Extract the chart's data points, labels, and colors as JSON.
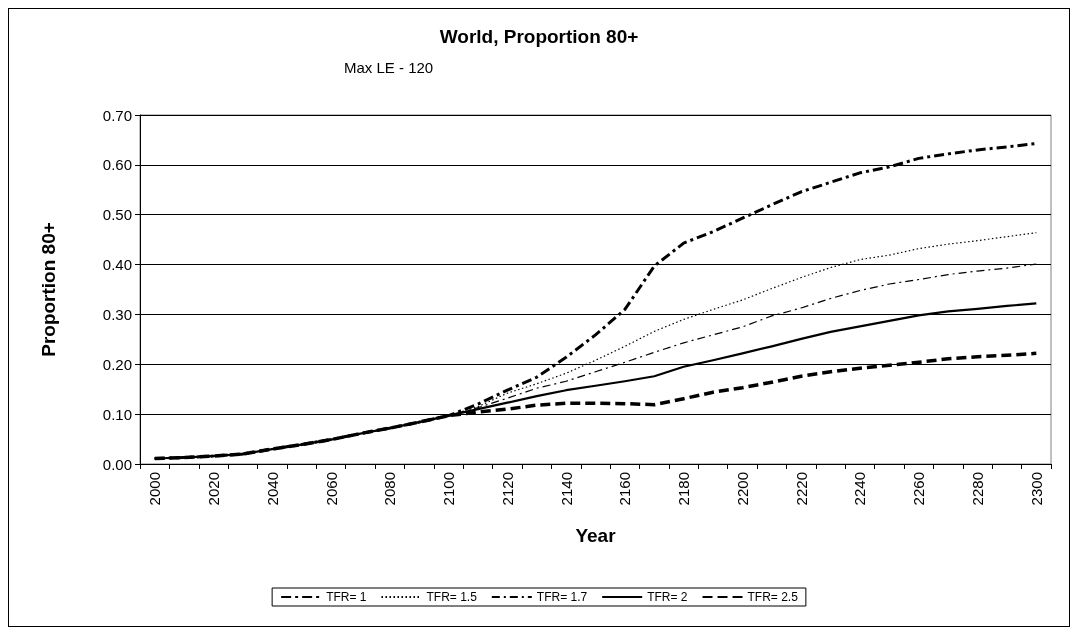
{
  "chart_data": {
    "type": "line",
    "title": "World, Proportion 80+",
    "subtitle": "Max LE - 120",
    "xlabel": "Year",
    "ylabel": "Proportion 80+",
    "categories": [
      "2000",
      null,
      "2020",
      null,
      "2040",
      null,
      "2060",
      null,
      "2080",
      null,
      "2100",
      null,
      "2120",
      null,
      "2140",
      null,
      "2160",
      null,
      "2180",
      null,
      "2200",
      null,
      "2220",
      null,
      "2240",
      null,
      "2260",
      null,
      "2280",
      null,
      "2300"
    ],
    "series": [
      {
        "name": "TFR= 1",
        "color": "#000000",
        "line_style": "dashed",
        "values": [
          0.011,
          0.013,
          0.016,
          0.02,
          0.03,
          0.039,
          0.049,
          0.061,
          0.072,
          0.084,
          0.097,
          0.12,
          0.148,
          0.174,
          0.214,
          0.259,
          0.31,
          0.397,
          0.443,
          0.466,
          0.493,
          0.52,
          0.546,
          0.565,
          0.584,
          0.596,
          0.613,
          0.622,
          0.63,
          0.636,
          0.643
        ]
      },
      {
        "name": "TFR= 1.5",
        "color": "#000000",
        "line_style": "dotted",
        "values": [
          0.011,
          0.013,
          0.016,
          0.02,
          0.03,
          0.039,
          0.049,
          0.061,
          0.072,
          0.084,
          0.097,
          0.115,
          0.142,
          0.161,
          0.182,
          0.208,
          0.236,
          0.266,
          0.29,
          0.31,
          0.329,
          0.352,
          0.374,
          0.394,
          0.41,
          0.419,
          0.432,
          0.441,
          0.448,
          0.456,
          0.464
        ]
      },
      {
        "name": "TFR= 1.7",
        "color": "#000000",
        "line_style": "dashed",
        "values": [
          0.011,
          0.013,
          0.016,
          0.02,
          0.03,
          0.039,
          0.049,
          0.061,
          0.072,
          0.084,
          0.097,
          0.113,
          0.132,
          0.152,
          0.166,
          0.185,
          0.204,
          0.224,
          0.243,
          0.259,
          0.275,
          0.297,
          0.313,
          0.332,
          0.348,
          0.361,
          0.37,
          0.38,
          0.387,
          0.393,
          0.401
        ]
      },
      {
        "name": "TFR= 2",
        "color": "#000000",
        "line_style": "solid",
        "values": [
          0.011,
          0.013,
          0.016,
          0.02,
          0.03,
          0.039,
          0.049,
          0.061,
          0.072,
          0.084,
          0.097,
          0.11,
          0.123,
          0.136,
          0.148,
          0.157,
          0.166,
          0.176,
          0.195,
          0.208,
          0.222,
          0.236,
          0.251,
          0.265,
          0.276,
          0.287,
          0.298,
          0.306,
          0.311,
          0.317,
          0.322
        ]
      },
      {
        "name": "TFR= 2.5",
        "color": "#000000",
        "line_style": "dashed",
        "values": [
          0.011,
          0.013,
          0.016,
          0.02,
          0.03,
          0.039,
          0.049,
          0.061,
          0.072,
          0.084,
          0.097,
          0.104,
          0.11,
          0.118,
          0.122,
          0.122,
          0.121,
          0.119,
          0.131,
          0.144,
          0.153,
          0.164,
          0.176,
          0.185,
          0.192,
          0.198,
          0.204,
          0.211,
          0.215,
          0.218,
          0.222
        ]
      }
    ],
    "ylim": [
      0,
      0.7
    ],
    "yticks": [
      {
        "value": 0,
        "label": "0.00"
      },
      {
        "value": 0.1,
        "label": "0.10"
      },
      {
        "value": 0.2,
        "label": "0.20"
      },
      {
        "value": 0.3,
        "label": "0.30"
      },
      {
        "value": 0.4,
        "label": "0.40"
      },
      {
        "value": 0.5,
        "label": "0.50"
      },
      {
        "value": 0.6,
        "label": "0.60"
      },
      {
        "value": 0.7,
        "label": "0.70"
      }
    ],
    "grid": "y",
    "legend": "bottom",
    "marker": "none"
  }
}
